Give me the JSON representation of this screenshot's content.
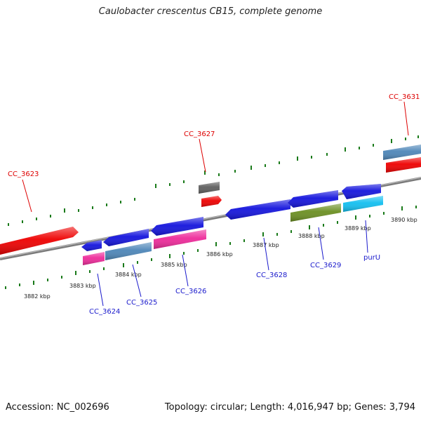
{
  "title": "Caulobacter crescentus CB15, complete genome",
  "accession": "Accession: NC_002696",
  "summary": "Topology: circular; Length: 4,016,947 bp; Genes: 3,794",
  "ruler_labels": [
    "3882 kbp",
    "3883 kbp",
    "3884 kbp",
    "3885 kbp",
    "3886 kbp",
    "3887 kbp",
    "3888 kbp",
    "3889 kbp",
    "3890 kbp"
  ],
  "gene_labels": {
    "forward": [
      "CC_3623",
      "CC_3627",
      "CC_3631"
    ],
    "reverse": [
      "CC_3624",
      "CC_3625",
      "CC_3626",
      "CC_3628",
      "CC_3629",
      "purU"
    ]
  },
  "colors": {
    "forward_label": "#dd0000",
    "reverse_label": "#1a1acc",
    "backbone": "#8a8a8a",
    "tick": "#1a7a1a",
    "red_feature": "#ee0000",
    "blue_feature": "#1414dd",
    "steel_feature": "#4d86b8",
    "pink_feature": "#ee2a9a",
    "olive_feature": "#6b8f22",
    "cyan_feature": "#12bff0",
    "gray_feature": "#5e5e5e"
  }
}
